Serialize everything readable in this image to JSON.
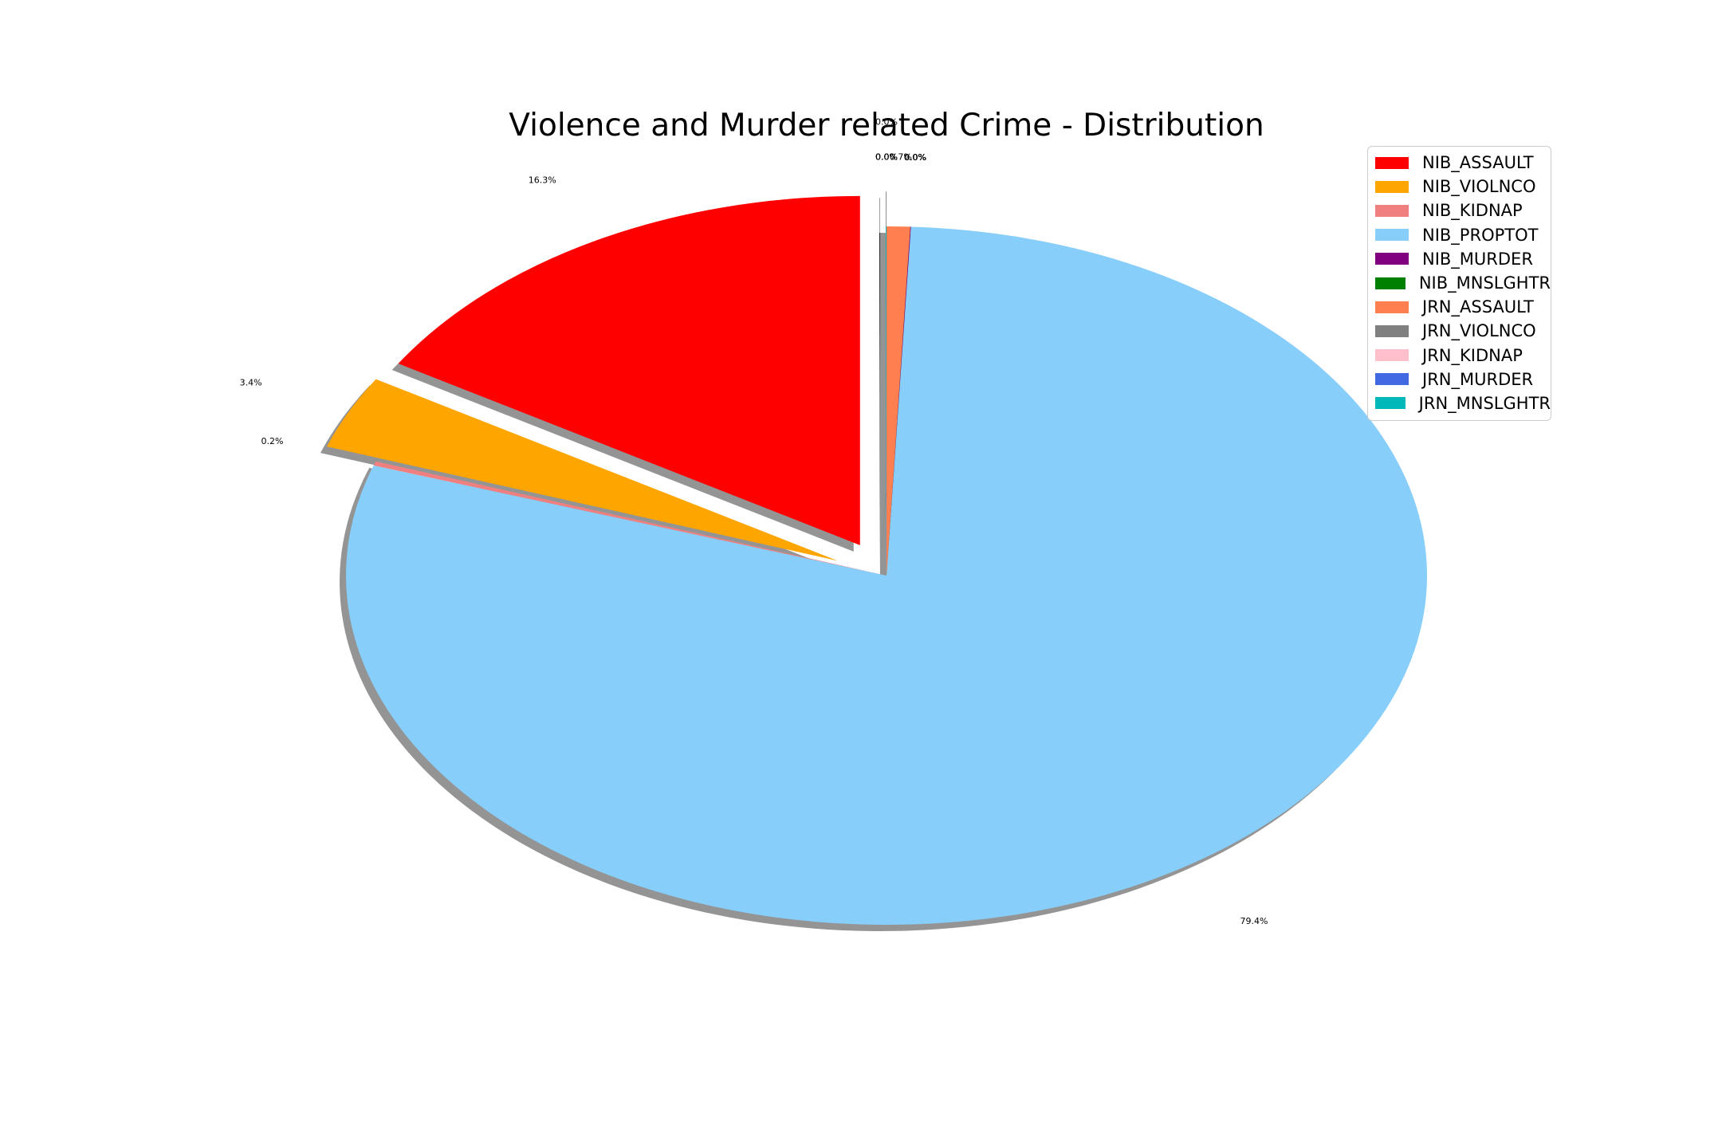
{
  "chart_data": {
    "type": "pie",
    "title": "Violence and Murder related Crime - Distribution",
    "shadow": true,
    "labels": [
      "NIB_ASSAULT",
      "NIB_VIOLNCO",
      "NIB_KIDNAP",
      "NIB_PROPTOT",
      "NIB_MURDER",
      "NIB_MNSLGHTR",
      "JRN_ASSAULT",
      "JRN_VIOLNCO",
      "JRN_KIDNAP",
      "JRN_MURDER",
      "JRN_MNSLGHTR"
    ],
    "values": [
      16.3,
      3.4,
      0.2,
      79.4,
      0.02,
      0.0,
      0.7,
      0.0,
      0.0,
      0.0,
      0.0
    ],
    "pct_labels": [
      "16.3%",
      "3.4%",
      "0.2%",
      "79.4%",
      "0.0%",
      "0.0%",
      "0.7%",
      "0.0%",
      "0.0%",
      "0.0%",
      "0.0%"
    ],
    "exploded": [
      "NIB_ASSAULT",
      "NIB_VIOLNCO",
      "JRN_VIOLNCO"
    ],
    "colors": [
      "#ff0000",
      "#ffa500",
      "#f08080",
      "#87cefa",
      "#800080",
      "#008000",
      "#ff7f50",
      "#808080",
      "#ffc0cb",
      "#4169e1",
      "#00b8b8"
    ],
    "legend_placement": "top-right"
  }
}
